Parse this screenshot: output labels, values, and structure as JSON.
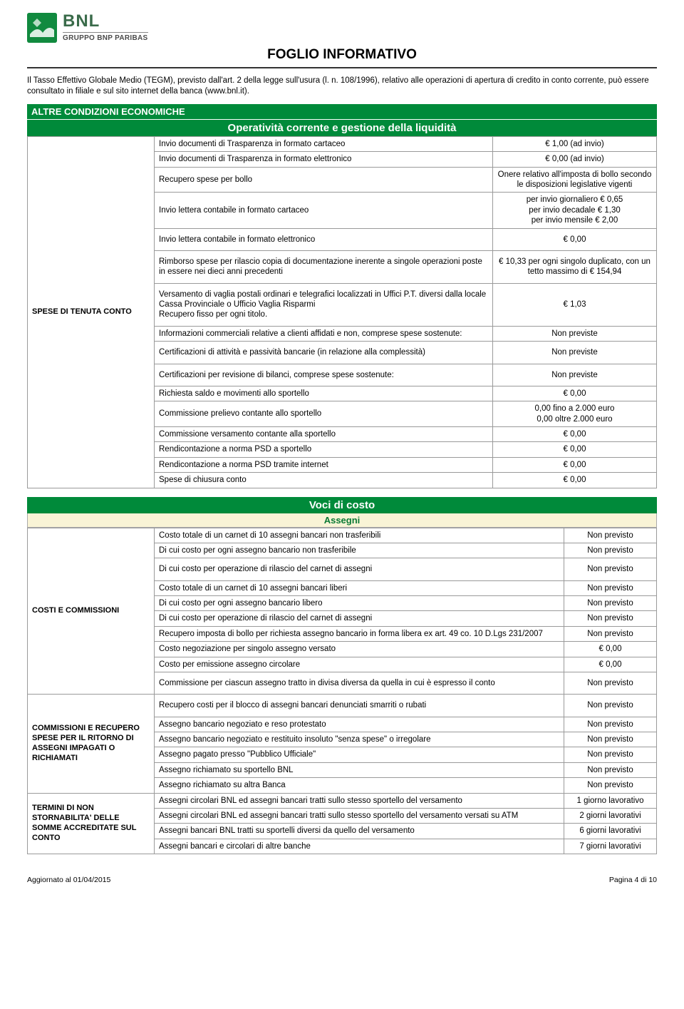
{
  "logo": {
    "bnl": "BNL",
    "sub": "GRUPPO BNP PARIBAS"
  },
  "title": "FOGLIO INFORMATIVO",
  "intro": "Il Tasso Effettivo Globale Medio (TEGM), previsto dall'art. 2 della legge sull'usura (l. n. 108/1996), relativo alle operazioni di apertura di credito in conto corrente, può essere consultato in filiale e sul sito internet della banca (www.bnl.it).",
  "band1": "ALTRE CONDIZIONI ECONOMICHE",
  "band1_sub": "Operatività corrente e gestione della liquidità",
  "section1_label": "SPESE DI TENUTA CONTO",
  "rows1": [
    {
      "desc": "Invio documenti di Trasparenza in formato cartaceo",
      "val": "€ 1,00 (ad invio)"
    },
    {
      "desc": "Invio documenti di Trasparenza in formato elettronico",
      "val": "€ 0,00 (ad invio)"
    },
    {
      "desc": "Recupero spese per bollo",
      "val": "Onere relativo all'imposta di bollo secondo le disposizioni legislative vigenti"
    },
    {
      "desc": "Invio lettera contabile in formato cartaceo",
      "val": "per invio giornaliero € 0,65\nper invio decadale € 1,30\nper invio mensile € 2,00"
    },
    {
      "desc": "Invio lettera contabile in formato elettronico",
      "val": "€ 0,00"
    },
    {
      "desc": "Rimborso spese per rilascio copia di documentazione inerente a singole operazioni poste in essere nei dieci anni precedenti",
      "val": "€ 10,33 per ogni singolo duplicato, con un tetto massimo di € 154,94"
    },
    {
      "desc": "Versamento di vaglia postali ordinari e telegrafici localizzati in Uffici P.T. diversi dalla locale Cassa Provinciale o Ufficio Vaglia Risparmi\nRecupero fisso per ogni titolo.",
      "val": "€ 1,03"
    },
    {
      "desc": "Informazioni commerciali relative a clienti affidati e non, comprese spese sostenute:",
      "val": "Non previste"
    },
    {
      "desc": "Certificazioni di attività e passività bancarie (in relazione alla complessità)",
      "val": "Non previste"
    },
    {
      "desc": "Certificazioni per revisione di bilanci, comprese spese sostenute:",
      "val": "Non previste"
    },
    {
      "desc": "Richiesta saldo e movimenti allo sportello",
      "val": "€ 0,00"
    },
    {
      "desc": "Commissione prelievo contante allo sportello",
      "val": "0,00 fino a 2.000 euro\n0,00 oltre 2.000 euro"
    },
    {
      "desc": "Commissione versamento contante alla sportello",
      "val": "€ 0,00"
    },
    {
      "desc": "Rendicontazione a norma PSD a sportello",
      "val": "€ 0,00"
    },
    {
      "desc": "Rendicontazione a norma PSD tramite internet",
      "val": "€ 0,00"
    },
    {
      "desc": "Spese di chiusura conto",
      "val": "€ 0,00"
    }
  ],
  "band2": "Voci di costo",
  "band2_sub": "Assegni",
  "section2a_label": "COSTI  E COMMISSIONI",
  "rows2a": [
    {
      "desc": "Costo totale di un carnet di 10 assegni bancari  non trasferibili",
      "val": "Non previsto"
    },
    {
      "desc": "Di cui costo per ogni assegno bancario non trasferibile",
      "val": "Non previsto"
    },
    {
      "desc": "Di cui costo per operazione di rilascio del carnet di assegni",
      "val": "Non previsto"
    },
    {
      "desc": "Costo totale di un carnet di 10 assegni bancari  liberi",
      "val": "Non previsto"
    },
    {
      "desc": "Di cui costo per ogni assegno bancario libero",
      "val": "Non previsto"
    },
    {
      "desc": "Di cui costo per operazione di rilascio del carnet di assegni",
      "val": "Non previsto"
    },
    {
      "desc": "Recupero imposta di bollo per richiesta assegno bancario in forma libera ex art. 49 co. 10 D.Lgs 231/2007",
      "val": "Non previsto"
    },
    {
      "desc": "Costo negoziazione per singolo assegno versato",
      "val": "€ 0,00"
    },
    {
      "desc": "Costo per emissione assegno circolare",
      "val": "€ 0,00"
    },
    {
      "desc": "Commissione per ciascun assegno tratto in divisa diversa da quella in cui è espresso il conto",
      "val": "Non previsto"
    }
  ],
  "section2b_label": "COMMISSIONI E RECUPERO SPESE PER IL RITORNO DI ASSEGNI IMPAGATI O RICHIAMATI",
  "rows2b": [
    {
      "desc": "Recupero costi per il blocco di assegni bancari denunciati smarriti o rubati",
      "val": "Non previsto"
    },
    {
      "desc": "Assegno bancario negoziato  e reso protestato",
      "val": "Non previsto"
    },
    {
      "desc": "Assegno bancario negoziato e restituito insoluto \"senza spese\" o irregolare",
      "val": "Non previsto"
    },
    {
      "desc": "Assegno pagato presso \"Pubblico Ufficiale\"",
      "val": "Non previsto"
    },
    {
      "desc": "Assegno richiamato su sportello BNL",
      "val": "Non previsto"
    },
    {
      "desc": "Assegno richiamato su altra Banca",
      "val": "Non previsto"
    }
  ],
  "section2c_label": "TERMINI DI NON STORNABILITA' DELLE SOMME ACCREDITATE SUL CONTO",
  "rows2c": [
    {
      "desc": "Assegni circolari BNL ed assegni bancari tratti sullo stesso sportello del versamento",
      "val": "1 giorno lavorativo"
    },
    {
      "desc": "Assegni circolari BNL ed assegni bancari tratti sullo stesso sportello del versamento versati su ATM",
      "val": "2 giorni lavorativi"
    },
    {
      "desc": "Assegni bancari BNL tratti su sportelli diversi da quello del versamento",
      "val": "6 giorni lavorativi"
    },
    {
      "desc": "Assegni bancari e circolari di altre banche",
      "val": "7 giorni lavorativi"
    }
  ],
  "footer_left": "Aggiornato al  01/04/2015",
  "footer_right": "Pagina 4 di 10"
}
